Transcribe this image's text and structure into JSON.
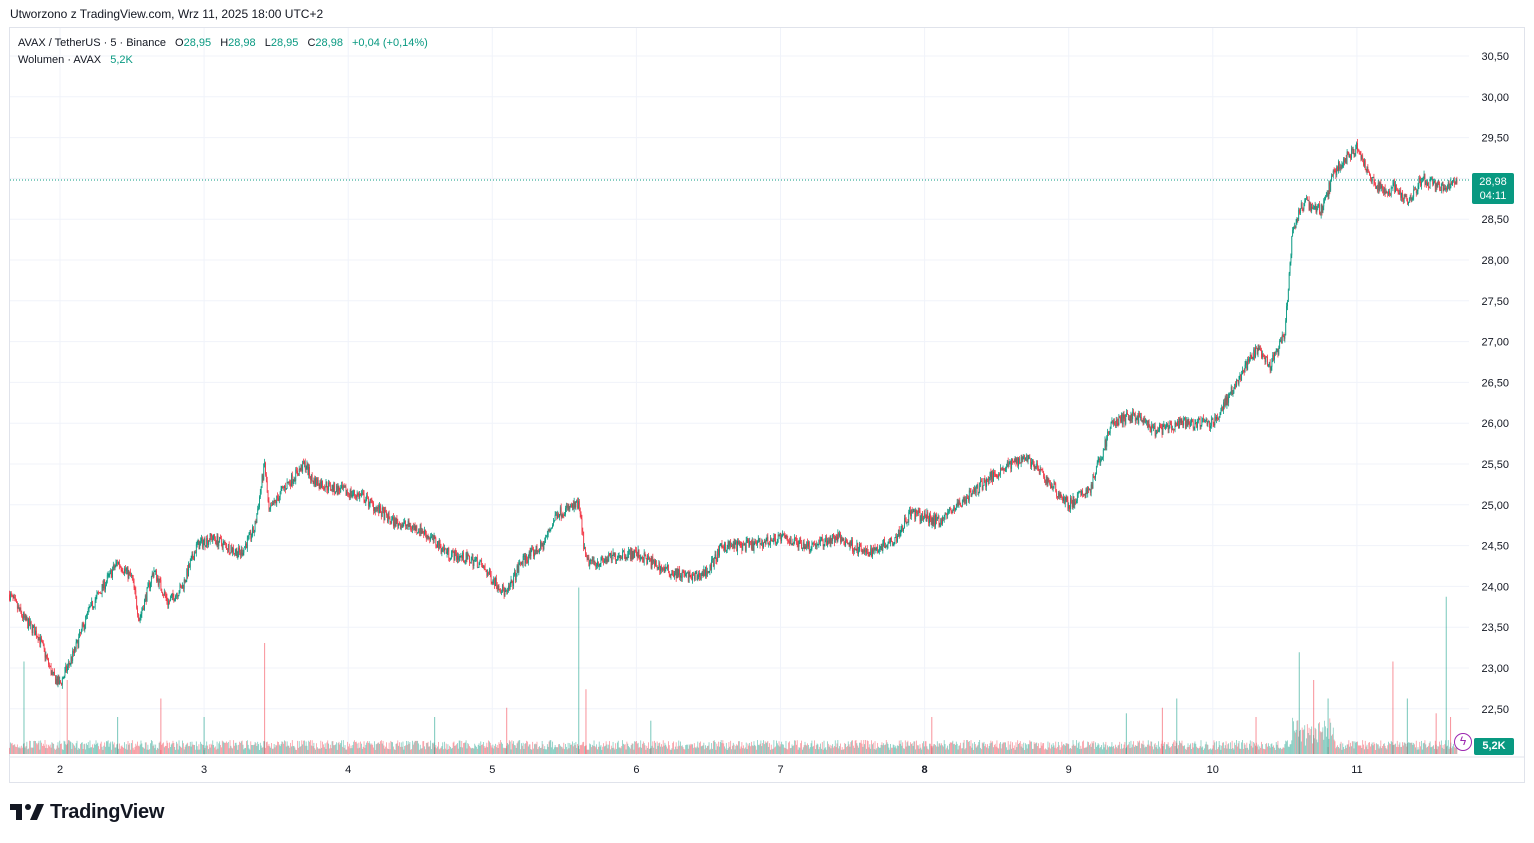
{
  "header": {
    "created_text": "Utworzono z TradingView.com, Wrz 11, 2025 18:00 UTC+2"
  },
  "legend": {
    "symbol": "AVAX / TetherUS · 5 · Binance",
    "open_label": "O",
    "open": "28,95",
    "high_label": "H",
    "high": "28,98",
    "low_label": "L",
    "low": "28,95",
    "close_label": "C",
    "close": "28,98",
    "change": "+0,04 (+0,14%)",
    "volume_label": "Wolumen · AVAX",
    "volume": "5,2K"
  },
  "price_tag": {
    "price": "28,98",
    "countdown": "04:11"
  },
  "volume_tag": "5,2K",
  "logo": {
    "text": "TradingView",
    "icon": "tradingview-logo-icon"
  },
  "indicator_icon": "lightning-icon",
  "colors": {
    "up": "#089981",
    "down": "#f23645",
    "grid": "#f0f3fa",
    "text": "#131722"
  },
  "chart_data": {
    "type": "candlestick",
    "symbol": "AVAX / TetherUS",
    "interval": "5",
    "exchange": "Binance",
    "x_tick_labels": [
      "2",
      "3",
      "4",
      "5",
      "6",
      "7",
      "8",
      "9",
      "10",
      "11"
    ],
    "y_tick_labels": [
      "22,50",
      "23,00",
      "23,50",
      "24,00",
      "24,50",
      "25,00",
      "25,50",
      "26,00",
      "26,50",
      "27,00",
      "27,50",
      "28,00",
      "28,50",
      "29,00",
      "29,50",
      "30,00",
      "30,50"
    ],
    "ylim": [
      22.0,
      30.8
    ],
    "last_price": 28.98,
    "grid": true,
    "price_series": {
      "x_day": [
        1.65,
        1.75,
        1.85,
        1.95,
        2.0,
        2.1,
        2.2,
        2.3,
        2.4,
        2.5,
        2.55,
        2.65,
        2.75,
        2.85,
        2.95,
        3.05,
        3.15,
        3.25,
        3.35,
        3.42,
        3.45,
        3.55,
        3.7,
        3.75,
        3.9,
        4.1,
        4.3,
        4.5,
        4.7,
        4.9,
        5.1,
        5.2,
        5.35,
        5.45,
        5.6,
        5.65,
        5.75,
        5.9,
        6.0,
        6.2,
        6.4,
        6.5,
        6.6,
        6.8,
        7.0,
        7.2,
        7.4,
        7.6,
        7.8,
        7.9,
        8.1,
        8.3,
        8.5,
        8.7,
        8.85,
        9.0,
        9.15,
        9.3,
        9.45,
        9.6,
        9.8,
        10.0,
        10.1,
        10.3,
        10.4,
        10.5,
        10.55,
        10.6,
        10.65,
        10.75,
        10.85,
        11.0,
        11.1,
        11.2,
        11.25,
        11.35,
        11.45,
        11.55,
        11.6,
        11.7
      ],
      "close": [
        23.9,
        23.6,
        23.4,
        22.9,
        22.8,
        23.2,
        23.7,
        24.0,
        24.3,
        24.1,
        23.6,
        24.2,
        23.8,
        24.0,
        24.5,
        24.6,
        24.5,
        24.4,
        24.7,
        25.5,
        24.9,
        25.2,
        25.5,
        25.3,
        25.2,
        25.1,
        24.8,
        24.7,
        24.4,
        24.3,
        23.9,
        24.3,
        24.5,
        24.9,
        25.0,
        24.3,
        24.3,
        24.4,
        24.4,
        24.2,
        24.1,
        24.2,
        24.5,
        24.5,
        24.6,
        24.5,
        24.6,
        24.4,
        24.6,
        24.9,
        24.8,
        25.1,
        25.4,
        25.6,
        25.3,
        25.0,
        25.2,
        26.0,
        26.1,
        25.9,
        26.0,
        26.0,
        26.3,
        26.9,
        26.7,
        27.1,
        28.3,
        28.6,
        28.7,
        28.6,
        29.1,
        29.4,
        29.0,
        28.8,
        28.9,
        28.7,
        29.0,
        28.9,
        28.9,
        28.98
      ]
    },
    "volume_spikes": {
      "x_day": [
        1.75,
        2.05,
        2.4,
        2.7,
        3.0,
        3.42,
        4.6,
        5.1,
        5.6,
        5.65,
        6.1,
        8.05,
        9.4,
        9.65,
        9.75,
        10.3,
        10.6,
        10.7,
        10.8,
        11.25,
        11.35,
        11.55,
        11.62,
        11.65
      ],
      "relative_height": [
        0.5,
        0.4,
        0.2,
        0.3,
        0.2,
        0.6,
        0.2,
        0.25,
        0.9,
        0.35,
        0.18,
        0.2,
        0.22,
        0.25,
        0.3,
        0.2,
        0.55,
        0.4,
        0.3,
        0.5,
        0.3,
        0.22,
        0.85,
        0.2
      ]
    }
  }
}
